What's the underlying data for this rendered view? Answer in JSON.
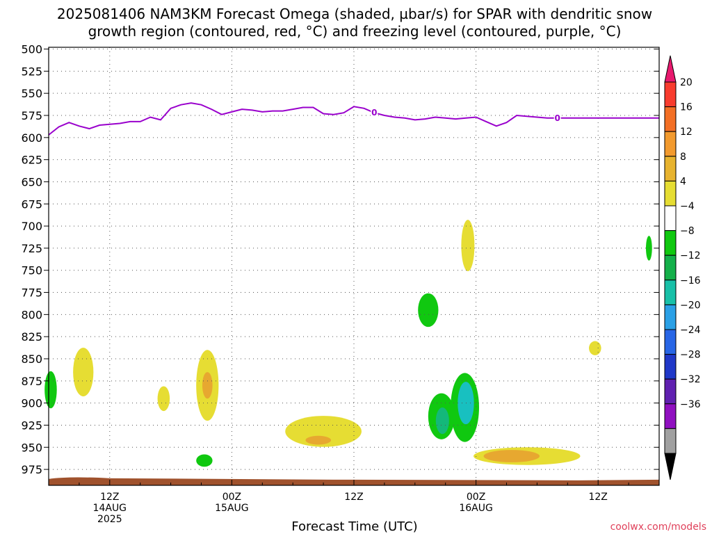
{
  "chart_data": {
    "type": "heatmap",
    "title_lines": [
      "2025081406 NAM3KM Forecast Omega (shaded, µbar/s) for SPAR with dendritic snow",
      "growth region (contoured, red, °C) and freezing level (contoured, purple, °C)"
    ],
    "xlabel": "Forecast Time (UTC)",
    "y_axis": {
      "ticks": [
        500,
        525,
        550,
        575,
        600,
        625,
        650,
        675,
        700,
        725,
        750,
        775,
        800,
        825,
        850,
        875,
        900,
        925,
        950,
        975
      ],
      "range": [
        498,
        993
      ],
      "inverted": true
    },
    "x_axis": {
      "range_hours": [
        0,
        60
      ],
      "ticks": [
        {
          "hour": 6,
          "label": "12Z",
          "sub1": "14AUG",
          "sub2": "2025"
        },
        {
          "hour": 18,
          "label": "00Z",
          "sub1": "15AUG",
          "sub2": ""
        },
        {
          "hour": 30,
          "label": "12Z",
          "sub1": "",
          "sub2": ""
        },
        {
          "hour": 42,
          "label": "00Z",
          "sub1": "16AUG",
          "sub2": ""
        },
        {
          "hour": 54,
          "label": "12Z",
          "sub1": "",
          "sub2": ""
        }
      ]
    },
    "grid": true,
    "colorbar": {
      "labels": [
        "20",
        "16",
        "12",
        "8",
        "4",
        "−4",
        "−8",
        "−12",
        "−16",
        "−20",
        "−24",
        "−28",
        "−32",
        "−36"
      ],
      "colors": [
        "#e8196e",
        "#f83c2e",
        "#f36f25",
        "#f29a2e",
        "#e7b32f",
        "#e6dd33",
        "#ffffff",
        "#10c810",
        "#14b04a",
        "#18c0a8",
        "#2aa0e6",
        "#2866e6",
        "#2038c8",
        "#6020b0",
        "#9010c0",
        "#a0a0a0",
        "#000000"
      ]
    },
    "freezing_level": {
      "name": "freezing level",
      "contour_label": "0",
      "color": "#9900cc",
      "x_hours": [
        0,
        1,
        2,
        3,
        4,
        5,
        6,
        7,
        8,
        9,
        10,
        11,
        12,
        13,
        14,
        15,
        16,
        17,
        18,
        19,
        20,
        21,
        22,
        23,
        24,
        25,
        26,
        27,
        28,
        29,
        30,
        31,
        32,
        33,
        34,
        35,
        36,
        37,
        38,
        39,
        40,
        41,
        42,
        43,
        44,
        45,
        46,
        47,
        48,
        49,
        50,
        51,
        52,
        53,
        54,
        55,
        56,
        57,
        58,
        59,
        60
      ],
      "pressure": [
        597,
        588,
        583,
        587,
        590,
        586,
        585,
        584,
        582,
        582,
        577,
        580,
        567,
        563,
        561,
        563,
        568,
        574,
        571,
        568,
        569,
        571,
        570,
        570,
        568,
        566,
        566,
        573,
        574,
        572,
        565,
        567,
        572,
        575,
        577,
        578,
        580,
        579,
        577,
        578,
        579,
        578,
        577,
        582,
        587,
        583,
        575,
        576,
        577,
        578,
        578,
        578,
        578,
        578,
        578,
        578,
        578,
        578,
        578,
        578,
        578
      ],
      "label_hours": [
        32,
        50
      ]
    },
    "omega_regions": [
      {
        "value": 6,
        "hour": 3.4,
        "pressure": 865,
        "w_hours": 2.0,
        "h_hpa": 55
      },
      {
        "value": -6,
        "hour": 0.2,
        "pressure": 885,
        "w_hours": 1.2,
        "h_hpa": 42
      },
      {
        "value": 6,
        "hour": 11.3,
        "pressure": 895,
        "w_hours": 1.2,
        "h_hpa": 28
      },
      {
        "value": 6,
        "hour": 15.6,
        "pressure": 880,
        "w_hours": 2.2,
        "h_hpa": 80
      },
      {
        "value": 10,
        "hour": 15.6,
        "pressure": 880,
        "w_hours": 1.0,
        "h_hpa": 30
      },
      {
        "value": -6,
        "hour": 15.3,
        "pressure": 965,
        "w_hours": 1.6,
        "h_hpa": 14
      },
      {
        "value": 6,
        "hour": 27.0,
        "pressure": 932,
        "w_hours": 7.5,
        "h_hpa": 35
      },
      {
        "value": 10,
        "hour": 26.5,
        "pressure": 942,
        "w_hours": 2.5,
        "h_hpa": 10
      },
      {
        "value": -6,
        "hour": 37.3,
        "pressure": 795,
        "w_hours": 2.0,
        "h_hpa": 38
      },
      {
        "value": -6,
        "hour": 38.6,
        "pressure": 915,
        "w_hours": 2.6,
        "h_hpa": 52
      },
      {
        "value": -10,
        "hour": 38.7,
        "pressure": 920,
        "w_hours": 1.3,
        "h_hpa": 30
      },
      {
        "value": -6,
        "hour": 40.9,
        "pressure": 905,
        "w_hours": 2.8,
        "h_hpa": 78
      },
      {
        "value": -14,
        "hour": 41.0,
        "pressure": 900,
        "w_hours": 1.6,
        "h_hpa": 48
      },
      {
        "value": 6,
        "hour": 41.2,
        "pressure": 722,
        "w_hours": 1.3,
        "h_hpa": 58
      },
      {
        "value": 6,
        "hour": 47.0,
        "pressure": 960,
        "w_hours": 10.5,
        "h_hpa": 20
      },
      {
        "value": 10,
        "hour": 45.5,
        "pressure": 960,
        "w_hours": 5.5,
        "h_hpa": 14
      },
      {
        "value": 6,
        "hour": 53.7,
        "pressure": 838,
        "w_hours": 1.2,
        "h_hpa": 16
      },
      {
        "value": -6,
        "hour": 59.0,
        "pressure": 725,
        "w_hours": 0.6,
        "h_hpa": 28
      }
    ],
    "terrain": {
      "color": "#a0522d",
      "pressure_top": 985
    }
  },
  "credit": "coolwx.com/models",
  "colors": {
    "credit": "#e0405a",
    "grid": "#555555",
    "freezing": "#9900cc",
    "terrain": "#a0522d"
  }
}
